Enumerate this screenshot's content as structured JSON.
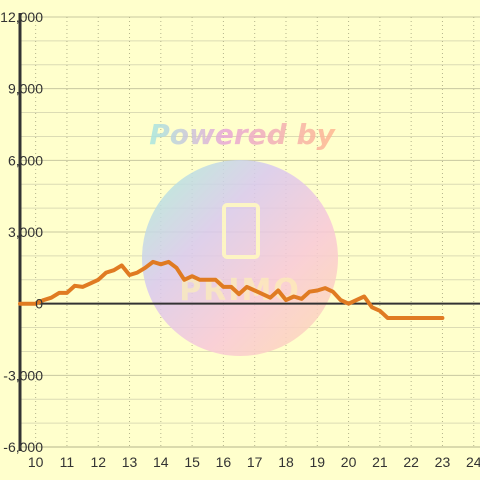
{
  "chart_data": {
    "type": "line",
    "title": "",
    "xlabel": "",
    "ylabel": "",
    "xlim": [
      9.5,
      24.2
    ],
    "ylim": [
      -6000,
      12000
    ],
    "x_ticks": [
      10,
      11,
      12,
      13,
      14,
      15,
      16,
      17,
      18,
      19,
      20,
      21,
      22,
      23,
      24
    ],
    "x_tick_labels": [
      "10",
      "11",
      "12",
      "13",
      "14",
      "15",
      "16",
      "17",
      "18",
      "19",
      "20",
      "21",
      "22",
      "23",
      "24"
    ],
    "y_ticks": [
      -6000,
      -3000,
      0,
      3000,
      6000,
      9000,
      12000
    ],
    "y_tick_labels": [
      "-6,000",
      "-3,000",
      "0",
      "3,000",
      "6,000",
      "9,000",
      "12,000"
    ],
    "grid": true,
    "line_color": "#e07b22",
    "series": [
      {
        "x": [
          9.5,
          9.75,
          10.0,
          10.25,
          10.5,
          10.75,
          11.0,
          11.25,
          11.5,
          11.75,
          12.0,
          12.25,
          12.5,
          12.75,
          13.0,
          13.25,
          13.5,
          13.75,
          14.0,
          14.25,
          14.5,
          14.75,
          15.0,
          15.25,
          15.5,
          15.75,
          16.0,
          16.25,
          16.5,
          16.75,
          17.0,
          17.25,
          17.5,
          17.75,
          18.0,
          18.25,
          18.5,
          18.75,
          19.0,
          19.25,
          19.5,
          19.75,
          20.0,
          20.25,
          20.5,
          20.75,
          21.0,
          21.25,
          21.5,
          21.75,
          22.0,
          22.25,
          22.5,
          22.75,
          23.0
        ],
        "values": [
          0,
          0,
          0,
          150,
          250,
          450,
          450,
          750,
          700,
          850,
          1000,
          1300,
          1400,
          1600,
          1200,
          1300,
          1500,
          1750,
          1650,
          1750,
          1500,
          1000,
          1150,
          1000,
          1000,
          1000,
          700,
          700,
          400,
          700,
          550,
          400,
          250,
          550,
          150,
          300,
          200,
          500,
          550,
          650,
          500,
          150,
          0,
          150,
          300,
          -150,
          -300,
          -600,
          -600,
          -600,
          -600,
          -600,
          -600,
          -600,
          -600
        ]
      }
    ]
  },
  "watermark": {
    "line1": "Powered by",
    "line2": "PRIMO"
  }
}
